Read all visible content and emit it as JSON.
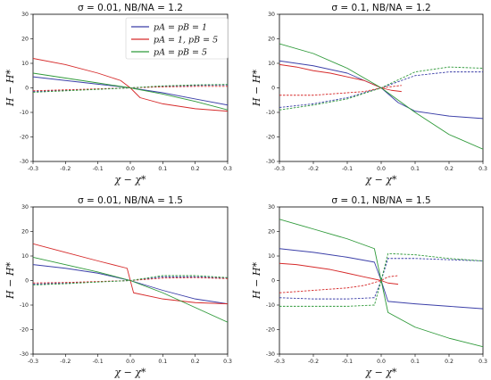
{
  "figure": {
    "legend": {
      "entries": [
        {
          "label": "pA = pB = 1",
          "color": "#3b3fa8"
        },
        {
          "label": "pA = 1, pB = 5",
          "color": "#d62a2a"
        },
        {
          "label": "pA = pB = 5",
          "color": "#2f9a3a"
        }
      ]
    }
  },
  "chart_data": [
    {
      "type": "line",
      "title": "σ = 0.01, NB/NA = 1.2",
      "xlabel": "χ − χ*",
      "ylabel": "H − H*",
      "xlim": [
        -0.3,
        0.3
      ],
      "ylim": [
        -30,
        30
      ],
      "xticks": [
        "-0.3",
        "-0.2",
        "-0.1",
        "0.0",
        "0.1",
        "0.2",
        "0.3"
      ],
      "yticks": [
        "-30",
        "-20",
        "-10",
        "0",
        "10",
        "20",
        "30"
      ],
      "legend_position": "top-center",
      "series": [
        {
          "name": "pA = pB = 1",
          "color": "#3b3fa8",
          "style": "solid",
          "x": [
            -0.3,
            -0.2,
            -0.1,
            0,
            0.1,
            0.2,
            0.3
          ],
          "y": [
            4.5,
            3.0,
            1.5,
            0,
            -2.0,
            -4.5,
            -7.0
          ]
        },
        {
          "name": "pA = 1, pB = 5",
          "color": "#d62a2a",
          "style": "solid",
          "x": [
            -0.3,
            -0.2,
            -0.1,
            -0.03,
            0,
            0.03,
            0.1,
            0.2,
            0.3
          ],
          "y": [
            12.0,
            9.5,
            6.0,
            3.0,
            0,
            -4.0,
            -6.5,
            -8.5,
            -9.5
          ]
        },
        {
          "name": "pA = pB = 5",
          "color": "#2f9a3a",
          "style": "solid",
          "x": [
            -0.3,
            -0.2,
            -0.1,
            0,
            0.1,
            0.2,
            0.3
          ],
          "y": [
            6.0,
            4.0,
            2.0,
            0,
            -2.5,
            -5.5,
            -9.0
          ]
        },
        {
          "color": "#3b3fa8",
          "style": "dashed",
          "x": [
            -0.3,
            -0.2,
            -0.1,
            0,
            0.1,
            0.2,
            0.3
          ],
          "y": [
            -1.5,
            -1.0,
            -0.5,
            0,
            0.6,
            1.0,
            1.2
          ]
        },
        {
          "color": "#d62a2a",
          "style": "dashed",
          "x": [
            -0.3,
            -0.2,
            -0.1,
            0,
            0.1,
            0.2,
            0.3
          ],
          "y": [
            -1.2,
            -0.8,
            -0.4,
            0,
            0.4,
            0.6,
            0.6
          ]
        },
        {
          "color": "#2f9a3a",
          "style": "dashed",
          "x": [
            -0.3,
            -0.2,
            -0.1,
            0,
            0.1,
            0.2,
            0.3
          ],
          "y": [
            -1.8,
            -1.2,
            -0.6,
            0,
            0.8,
            1.2,
            1.4
          ]
        }
      ]
    },
    {
      "type": "line",
      "title": "σ = 0.1, NB/NA = 1.2",
      "xlabel": "χ − χ*",
      "ylabel": "H − H*",
      "xlim": [
        -0.3,
        0.3
      ],
      "ylim": [
        -30,
        30
      ],
      "xticks": [
        "-0.3",
        "-0.2",
        "-0.1",
        "0.0",
        "0.1",
        "0.2",
        "0.3"
      ],
      "yticks": [
        "-30",
        "-20",
        "-10",
        "0",
        "10",
        "20",
        "30"
      ],
      "series": [
        {
          "color": "#3b3fa8",
          "style": "solid",
          "x": [
            -0.3,
            -0.2,
            -0.1,
            0,
            0.05,
            0.1,
            0.2,
            0.3
          ],
          "y": [
            11.0,
            9.0,
            6.0,
            0,
            -6.0,
            -9.5,
            -11.5,
            -12.5
          ]
        },
        {
          "color": "#d62a2a",
          "style": "solid",
          "x": [
            -0.3,
            -0.25,
            -0.2,
            -0.15,
            -0.1,
            -0.05,
            0,
            0.03,
            0.06
          ],
          "y": [
            9.5,
            8.5,
            7.0,
            6.0,
            4.5,
            3.0,
            0,
            -1.0,
            -1.5
          ]
        },
        {
          "color": "#2f9a3a",
          "style": "solid",
          "x": [
            -0.3,
            -0.2,
            -0.1,
            0,
            0.1,
            0.2,
            0.3
          ],
          "y": [
            18.0,
            14.0,
            8.0,
            0,
            -10.0,
            -19.0,
            -25.0
          ]
        },
        {
          "color": "#3b3fa8",
          "style": "dashed",
          "x": [
            -0.3,
            -0.2,
            -0.1,
            0,
            0.1,
            0.2,
            0.3
          ],
          "y": [
            -8.0,
            -6.5,
            -4.0,
            0,
            5.0,
            6.5,
            6.5
          ]
        },
        {
          "color": "#d62a2a",
          "style": "dashed",
          "x": [
            -0.3,
            -0.2,
            -0.1,
            -0.05,
            0,
            0.03,
            0.06
          ],
          "y": [
            -3.0,
            -3.0,
            -2.0,
            -1.5,
            0,
            0.5,
            1.0
          ]
        },
        {
          "color": "#2f9a3a",
          "style": "dashed",
          "x": [
            -0.3,
            -0.2,
            -0.1,
            0,
            0.1,
            0.2,
            0.3
          ],
          "y": [
            -9.0,
            -7.0,
            -4.5,
            0,
            6.5,
            8.5,
            8.0
          ]
        }
      ]
    },
    {
      "type": "line",
      "title": "σ = 0.01, NB/NA = 1.5",
      "xlabel": "χ − χ*",
      "ylabel": "H − H*",
      "xlim": [
        -0.3,
        0.3
      ],
      "ylim": [
        -30,
        30
      ],
      "xticks": [
        "-0.3",
        "-0.2",
        "-0.1",
        "0.0",
        "0.1",
        "0.2",
        "0.3"
      ],
      "yticks": [
        "-30",
        "-20",
        "-10",
        "0",
        "10",
        "20",
        "30"
      ],
      "series": [
        {
          "color": "#3b3fa8",
          "style": "solid",
          "x": [
            -0.3,
            -0.2,
            -0.1,
            0,
            0.1,
            0.2,
            0.3
          ],
          "y": [
            6.5,
            5.0,
            3.0,
            0,
            -4.0,
            -7.5,
            -9.5
          ]
        },
        {
          "color": "#d62a2a",
          "style": "solid",
          "x": [
            -0.3,
            -0.2,
            -0.1,
            -0.01,
            0,
            0.01,
            0.1,
            0.2,
            0.3
          ],
          "y": [
            15.0,
            11.5,
            8.0,
            5.0,
            0,
            -5.0,
            -7.5,
            -9.0,
            -9.5
          ]
        },
        {
          "color": "#2f9a3a",
          "style": "solid",
          "x": [
            -0.3,
            -0.2,
            -0.1,
            0,
            0.1,
            0.2,
            0.3
          ],
          "y": [
            9.5,
            6.5,
            3.5,
            0,
            -5.0,
            -11.0,
            -17.0
          ]
        },
        {
          "color": "#3b3fa8",
          "style": "dashed",
          "x": [
            -0.3,
            -0.2,
            -0.1,
            0,
            0.1,
            0.2,
            0.3
          ],
          "y": [
            -1.5,
            -1.0,
            -0.5,
            0,
            1.5,
            1.5,
            1.0
          ]
        },
        {
          "color": "#d62a2a",
          "style": "dashed",
          "x": [
            -0.3,
            -0.2,
            -0.1,
            0,
            0.1,
            0.2,
            0.3
          ],
          "y": [
            -1.0,
            -0.8,
            -0.4,
            0,
            1.0,
            1.2,
            0.8
          ]
        },
        {
          "color": "#2f9a3a",
          "style": "dashed",
          "x": [
            -0.3,
            -0.2,
            -0.1,
            0,
            0.1,
            0.2,
            0.3
          ],
          "y": [
            -1.8,
            -1.3,
            -0.6,
            0,
            2.0,
            2.0,
            1.2
          ]
        }
      ]
    },
    {
      "type": "line",
      "title": "σ = 0.1, NB/NA = 1.5",
      "xlabel": "χ − χ*",
      "ylabel": "H − H*",
      "xlim": [
        -0.3,
        0.3
      ],
      "ylim": [
        -30,
        30
      ],
      "xticks": [
        "-0.3",
        "-0.2",
        "-0.1",
        "0.0",
        "0.1",
        "0.2",
        "0.3"
      ],
      "yticks": [
        "-30",
        "-20",
        "-10",
        "0",
        "10",
        "20",
        "30"
      ],
      "series": [
        {
          "color": "#3b3fa8",
          "style": "solid",
          "x": [
            -0.3,
            -0.2,
            -0.1,
            -0.02,
            0,
            0.02,
            0.1,
            0.2,
            0.3
          ],
          "y": [
            13.0,
            11.5,
            9.5,
            7.5,
            0,
            -8.5,
            -9.5,
            -10.5,
            -11.5
          ]
        },
        {
          "color": "#d62a2a",
          "style": "solid",
          "x": [
            -0.3,
            -0.25,
            -0.2,
            -0.15,
            -0.1,
            -0.05,
            0,
            0.02,
            0.05
          ],
          "y": [
            7.0,
            6.5,
            5.5,
            4.5,
            3.0,
            1.5,
            0,
            -1.0,
            -1.5
          ]
        },
        {
          "color": "#2f9a3a",
          "style": "solid",
          "x": [
            -0.3,
            -0.2,
            -0.1,
            -0.02,
            0,
            0.02,
            0.1,
            0.2,
            0.3
          ],
          "y": [
            25.0,
            21.0,
            17.0,
            13.0,
            0,
            -13.0,
            -19.0,
            -23.5,
            -27.0
          ]
        },
        {
          "color": "#3b3fa8",
          "style": "dashed",
          "x": [
            -0.3,
            -0.2,
            -0.1,
            -0.02,
            0,
            0.02,
            0.1,
            0.2,
            0.3
          ],
          "y": [
            -7.0,
            -7.5,
            -7.5,
            -7.0,
            0,
            9.0,
            9.0,
            8.5,
            8.0
          ]
        },
        {
          "color": "#d62a2a",
          "style": "dashed",
          "x": [
            -0.3,
            -0.2,
            -0.1,
            -0.05,
            0,
            0.02,
            0.05
          ],
          "y": [
            -5.0,
            -4.0,
            -3.0,
            -2.0,
            0,
            1.5,
            2.0
          ]
        },
        {
          "color": "#2f9a3a",
          "style": "dashed",
          "x": [
            -0.3,
            -0.2,
            -0.1,
            -0.02,
            0,
            0.02,
            0.1,
            0.2,
            0.3
          ],
          "y": [
            -10.5,
            -10.5,
            -10.5,
            -10.0,
            0,
            11.0,
            10.5,
            9.0,
            8.0
          ]
        }
      ]
    }
  ]
}
